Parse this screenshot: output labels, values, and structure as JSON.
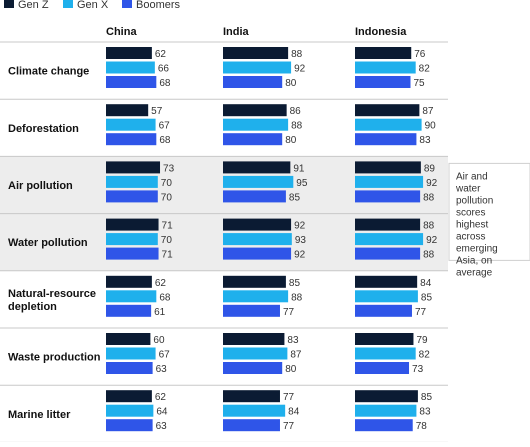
{
  "chart_data": {
    "type": "bar",
    "orientation": "horizontal",
    "legend": {
      "placement": "top-left",
      "entries": [
        "Gen Z",
        "Gen X",
        "Boomers"
      ]
    },
    "columns": [
      "China",
      "India",
      "Indonesia"
    ],
    "categories": [
      "Climate change",
      "Deforestation",
      "Air pollution",
      "Water pollution",
      "Natural-resource depletion",
      "Waste production",
      "Marine litter"
    ],
    "highlighted_categories": [
      "Air pollution",
      "Water pollution"
    ],
    "annotation": "Air and water pollution scores highest across emerging Asia, on average",
    "xlim": [
      0,
      100
    ],
    "series": [
      {
        "name": "Gen Z",
        "color": "#0b1b33",
        "values": {
          "China": [
            62,
            57,
            73,
            71,
            62,
            60,
            62
          ],
          "India": [
            88,
            86,
            91,
            92,
            85,
            83,
            77
          ],
          "Indonesia": [
            76,
            87,
            89,
            88,
            84,
            79,
            85
          ]
        }
      },
      {
        "name": "Gen X",
        "color": "#1fb0ec",
        "values": {
          "China": [
            66,
            67,
            70,
            70,
            68,
            67,
            64
          ],
          "India": [
            92,
            88,
            95,
            93,
            88,
            87,
            84
          ],
          "Indonesia": [
            82,
            90,
            92,
            92,
            85,
            82,
            83
          ]
        }
      },
      {
        "name": "Boomers",
        "color": "#2f55e8",
        "values": {
          "China": [
            68,
            68,
            70,
            71,
            61,
            63,
            63
          ],
          "India": [
            80,
            80,
            85,
            92,
            77,
            80,
            77
          ],
          "Indonesia": [
            75,
            83,
            88,
            88,
            77,
            73,
            78
          ]
        }
      }
    ]
  }
}
